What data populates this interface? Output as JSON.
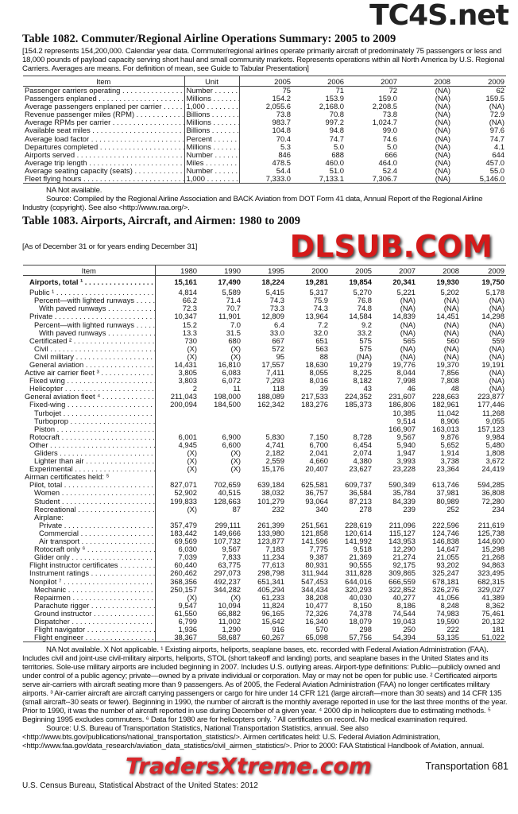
{
  "watermarks": {
    "top": "TC4S.net",
    "center": "DLSUB.COM",
    "bottom": "TradersXtreme.com"
  },
  "t1082": {
    "title": "Table 1082. Commuter/Regional Airline Operations Summary: 2005 to 2009",
    "intro": "[154.2 represents 154,200,000. Calendar year data. Commuter/regional airlines operate primarily aircraft of predominately 75 passengers or less and 18,000 pounds of payload capacity serving short haul and small community markets. Represents operations within all North America by U.S. Regional Carriers. Averages are means. For definition of mean, see Guide to Tabular Presentation]",
    "headers": [
      "Item",
      "Unit",
      "2005",
      "2006",
      "2007",
      "2008",
      "2009"
    ],
    "rows": [
      [
        "Passenger carriers operating",
        "Number",
        "75",
        "71",
        "72",
        "(NA)",
        "62"
      ],
      [
        "Passengers enplaned",
        "Millions",
        "154.2",
        "153.9",
        "159.0",
        "(NA)",
        "159.5"
      ],
      [
        "Average passengers enplaned per carrier",
        "1,000",
        "2,055.6",
        "2,168.0",
        "2,208.5",
        "(NA)",
        "(NA)"
      ],
      [
        "Revenue passenger miles (RPM)",
        "Billions",
        "73.8",
        "70.8",
        "73.8",
        "(NA)",
        "72.9"
      ],
      [
        "Average RPMs per carrier",
        "Millions",
        "983.7",
        "997.2",
        "1,024.7",
        "(NA)",
        "(NA)"
      ],
      [
        "Available seat miles",
        "Billions",
        "104.8",
        "94.8",
        "99.0",
        "(NA)",
        "97.6"
      ],
      [
        "Average load factor",
        "Percent",
        "70.4",
        "74.7",
        "74.6",
        "(NA)",
        "74.7"
      ],
      [
        "Departures completed",
        "Millions",
        "5.3",
        "5.0",
        "5.0",
        "(NA)",
        "4.1"
      ],
      [
        "Airports served",
        "Number",
        "846",
        "688",
        "666",
        "(NA)",
        "644"
      ],
      [
        "Average trip length",
        "Miles",
        "478.5",
        "460.0",
        "464.0",
        "(NA)",
        "457.0"
      ],
      [
        "Average seating capacity (seats)",
        "Number",
        "54.4",
        "51.0",
        "52.4",
        "(NA)",
        "55.0"
      ],
      [
        "Fleet flying hours",
        "1,000",
        "7,333.0",
        "7,133.1",
        "7,306.7",
        "(NA)",
        "5,146.0"
      ]
    ],
    "na_note": "NA Not available.",
    "source": "Source: Compiled by the Regional Airline Association and BACK Aviation from DOT Form 41 data, Annual Report of the Regional Airline Industry (copyright). See also <http://www.raa.org/>."
  },
  "t1083": {
    "title": "Table 1083. Airports, Aircraft, and Airmen: 1980 to 2009",
    "intro": "[As of December 31 or for years ending December 31]",
    "headers": [
      "Item",
      "1980",
      "1990",
      "1995",
      "2000",
      "2005",
      "2007",
      "2008",
      "2009"
    ],
    "rows": [
      {
        "l": "Airports, total ¹",
        "i": 1,
        "b": true,
        "v": [
          "15,161",
          "17,490",
          "18,224",
          "19,281",
          "19,854",
          "20,341",
          "19,930",
          "19,750"
        ]
      },
      {
        "l": "Public ¹",
        "i": 1,
        "v": [
          "4,814",
          "5,589",
          "5,415",
          "5,317",
          "5,270",
          "5,221",
          "5,202",
          "5,178"
        ]
      },
      {
        "l": "Percent—with lighted runways",
        "i": 2,
        "v": [
          "66.2",
          "71.4",
          "74.3",
          "75.9",
          "76.8",
          "(NA)",
          "(NA)",
          "(NA)"
        ]
      },
      {
        "l": "With paved runways",
        "i": 3,
        "v": [
          "72.3",
          "70.7",
          "73.3",
          "74.3",
          "74.8",
          "(NA)",
          "(NA)",
          "(NA)"
        ]
      },
      {
        "l": "Private",
        "i": 1,
        "v": [
          "10,347",
          "11,901",
          "12,809",
          "13,964",
          "14,584",
          "14,839",
          "14,451",
          "14,298"
        ]
      },
      {
        "l": "Percent—with lighted runways",
        "i": 2,
        "v": [
          "15.2",
          "7.0",
          "6.4",
          "7.2",
          "9.2",
          "(NA)",
          "(NA)",
          "(NA)"
        ]
      },
      {
        "l": "With paved runways",
        "i": 3,
        "v": [
          "13.3",
          "31.5",
          "33.0",
          "32.0",
          "33.2",
          "(NA)",
          "(NA)",
          "(NA)"
        ]
      },
      {
        "l": "Certificated ²",
        "i": 1,
        "v": [
          "730",
          "680",
          "667",
          "651",
          "575",
          "565",
          "560",
          "559"
        ]
      },
      {
        "l": "Civil",
        "i": 2,
        "v": [
          "(X)",
          "(X)",
          "572",
          "563",
          "575",
          "(NA)",
          "(NA)",
          "(NA)"
        ]
      },
      {
        "l": "Civil military",
        "i": 2,
        "v": [
          "(X)",
          "(X)",
          "95",
          "88",
          "(NA)",
          "(NA)",
          "(NA)",
          "(NA)"
        ]
      },
      {
        "l": "General aviation",
        "i": 1,
        "v": [
          "14,431",
          "16,810",
          "17,557",
          "18,630",
          "19,279",
          "19,776",
          "19,370",
          "19,191"
        ]
      },
      {
        "l": "Active air carrier fleet ³",
        "i": 0,
        "v": [
          "3,805",
          "6,083",
          "7,411",
          "8,055",
          "8,225",
          "8,044",
          "7,856",
          "(NA)"
        ]
      },
      {
        "l": "Fixed wing",
        "i": 1,
        "v": [
          "3,803",
          "6,072",
          "7,293",
          "8,016",
          "8,182",
          "7,998",
          "7,808",
          "(NA)"
        ]
      },
      {
        "l": "Helicopter",
        "i": 1,
        "v": [
          "2",
          "11",
          "118",
          "39",
          "43",
          "46",
          "48",
          "(NA)"
        ]
      },
      {
        "l": "General aviation fleet ⁴",
        "i": 0,
        "v": [
          "211,043",
          "198,000",
          "188,089",
          "217,533",
          "224,352",
          "231,607",
          "228,663",
          "223,877"
        ]
      },
      {
        "l": "Fixed-wing",
        "i": 1,
        "v": [
          "200,094",
          "184,500",
          "162,342",
          "183,276",
          "185,373",
          "186,806",
          "182,961",
          "177,446"
        ]
      },
      {
        "l": "Turbojet",
        "i": 2,
        "v": [
          "",
          "",
          "",
          "",
          "",
          "10,385",
          "11,042",
          "11,268"
        ]
      },
      {
        "l": "Turboprop",
        "i": 2,
        "v": [
          "",
          "",
          "",
          "",
          "",
          "9,514",
          "8,906",
          "9,055"
        ]
      },
      {
        "l": "Piston",
        "i": 2,
        "v": [
          "",
          "",
          "",
          "",
          "",
          "166,907",
          "163,013",
          "157,123"
        ]
      },
      {
        "l": "Rotocraft",
        "i": 1,
        "v": [
          "6,001",
          "6,900",
          "5,830",
          "7,150",
          "8,728",
          "9,567",
          "9,876",
          "9,984"
        ]
      },
      {
        "l": "Other",
        "i": 1,
        "v": [
          "4,945",
          "6,600",
          "4,741",
          "6,700",
          "6,454",
          "5,940",
          "5,652",
          "5,480"
        ]
      },
      {
        "l": "Gliders",
        "i": 2,
        "v": [
          "(X)",
          "(X)",
          "2,182",
          "2,041",
          "2,074",
          "1,947",
          "1,914",
          "1,808"
        ]
      },
      {
        "l": "Lighter than air",
        "i": 2,
        "v": [
          "(X)",
          "(X)",
          "2,559",
          "4,660",
          "4,380",
          "3,993",
          "3,738",
          "3,672"
        ]
      },
      {
        "l": "Experimental",
        "i": 1,
        "v": [
          "(X)",
          "(X)",
          "15,176",
          "20,407",
          "23,627",
          "23,228",
          "23,364",
          "24,419"
        ]
      },
      {
        "l": "Airman certificates held: ⁵",
        "i": 0,
        "h": true,
        "v": [
          "",
          "",
          "",
          "",
          "",
          "",
          "",
          ""
        ]
      },
      {
        "l": "Pilot, total",
        "i": 1,
        "v": [
          "827,071",
          "702,659",
          "639,184",
          "625,581",
          "609,737",
          "590,349",
          "613,746",
          "594,285"
        ]
      },
      {
        "l": "Women",
        "i": 2,
        "v": [
          "52,902",
          "40,515",
          "38,032",
          "36,757",
          "36,584",
          "35,784",
          "37,981",
          "36,808"
        ]
      },
      {
        "l": "Student",
        "i": 2,
        "v": [
          "199,833",
          "128,663",
          "101,279",
          "93,064",
          "87,213",
          "84,339",
          "80,989",
          "72,280"
        ]
      },
      {
        "l": "Recreational",
        "i": 2,
        "v": [
          "(X)",
          "87",
          "232",
          "340",
          "278",
          "239",
          "252",
          "234"
        ]
      },
      {
        "l": "Airplane:",
        "i": 2,
        "h": true,
        "v": [
          "",
          "",
          "",
          "",
          "",
          "",
          "",
          ""
        ]
      },
      {
        "l": "Private",
        "i": 3,
        "v": [
          "357,479",
          "299,111",
          "261,399",
          "251,561",
          "228,619",
          "211,096",
          "222,596",
          "211,619"
        ]
      },
      {
        "l": "Commercial",
        "i": 3,
        "v": [
          "183,442",
          "149,666",
          "133,980",
          "121,858",
          "120,614",
          "115,127",
          "124,746",
          "125,738"
        ]
      },
      {
        "l": "Air transport",
        "i": 3,
        "v": [
          "69,569",
          "107,732",
          "123,877",
          "141,596",
          "141,992",
          "143,953",
          "146,838",
          "144,600"
        ]
      },
      {
        "l": "Rotocraft only ⁶",
        "i": 2,
        "v": [
          "6,030",
          "9,567",
          "7,183",
          "7,775",
          "9,518",
          "12,290",
          "14,647",
          "15,298"
        ]
      },
      {
        "l": "Glider only",
        "i": 2,
        "v": [
          "7,039",
          "7,833",
          "11,234",
          "9,387",
          "21,369",
          "21,274",
          "21,055",
          "21,268"
        ]
      },
      {
        "l": "Flight instructor certificates",
        "i": 1,
        "v": [
          "60,440",
          "63,775",
          "77,613",
          "80,931",
          "90,555",
          "92,175",
          "93,202",
          "94,863"
        ]
      },
      {
        "l": "Instrument ratings",
        "i": 1,
        "v": [
          "260,462",
          "297,073",
          "298,798",
          "311,944",
          "311,828",
          "309,865",
          "325,247",
          "323,495"
        ]
      },
      {
        "l": "Nonpilot ⁷",
        "i": 1,
        "v": [
          "368,356",
          "492,237",
          "651,341",
          "547,453",
          "644,016",
          "666,559",
          "678,181",
          "682,315"
        ]
      },
      {
        "l": "Mechanic",
        "i": 2,
        "v": [
          "250,157",
          "344,282",
          "405,294",
          "344,434",
          "320,293",
          "322,852",
          "326,276",
          "329,027"
        ]
      },
      {
        "l": "Repairmen",
        "i": 2,
        "v": [
          "(X)",
          "(X)",
          "61,233",
          "38,208",
          "40,030",
          "40,277",
          "41,056",
          "41,389"
        ]
      },
      {
        "l": "Parachute rigger",
        "i": 2,
        "v": [
          "9,547",
          "10,094",
          "11,824",
          "10,477",
          "8,150",
          "8,186",
          "8,248",
          "8,362"
        ]
      },
      {
        "l": "Ground instructor",
        "i": 2,
        "v": [
          "61,550",
          "66,882",
          "96,165",
          "72,326",
          "74,378",
          "74,544",
          "74,983",
          "75,461"
        ]
      },
      {
        "l": "Dispatcher",
        "i": 2,
        "v": [
          "6,799",
          "11,002",
          "15,642",
          "16,340",
          "18,079",
          "19,043",
          "19,590",
          "20,132"
        ]
      },
      {
        "l": "Flight navigator",
        "i": 2,
        "v": [
          "1,936",
          "1,290",
          "916",
          "570",
          "298",
          "250",
          "222",
          "181"
        ]
      },
      {
        "l": "Flight engineer",
        "i": 2,
        "v": [
          "38,367",
          "58,687",
          "60,267",
          "65,098",
          "57,756",
          "54,394",
          "53,135",
          "51,022"
        ]
      }
    ],
    "notes": "NA Not available. X Not applicable. ¹ Existing airports, heliports, seaplane bases, etc. recorded with Federal Aviation Administration (FAA). Includes civil and joint-use civil-military airports, heliports, STOL (short takeoff and landing) ports, and seaplane bases in the United States and its territories. Sole-use military airports are included beginning in 2007. Includes U.S. outlying areas. Airport-type definitions: Public—publicly owned and under control of a public agency; private—owned by a private individual or corporation. May or may not be open for public use. ² Certificated airports serve air-carriers with aircraft seating more than 9 passengers. As of 2005, the Federal Aviation Administration (FAA) no longer certificates military airports. ³ Air-carrier aircraft are aircraft carrying passengers or cargo for hire under 14 CFR 121 (large aircraft—more than 30 seats) and 14 CFR 135 (small aircraft--30 seats or fewer). Beginning in 1990, the number of aircraft is the monthly average reported in use for the last three months of the year. Prior to 1990, it was the number of aircraft reported in use during December of a given year. ⁴ 2000 dip in helicopters due to estimating methods. ⁵ Beginning 1995 excludes commuters. ⁶ Data for 1980 are for helicopters only. ⁷ All certificates on record. No medical examination required.",
    "source": "Source: U.S. Bureau of Transportation Statistics, National Transportation Statistics, annual. See also <http://www.bts.gov/publications/national_transportation_statistics/>. Airmen certificates held: U.S. Federal Aviation Administration, <http://www.faa.gov/data_research/aviation_data_statistics/civil_airmen_statistics/>. Prior to 2000: FAA Statistical Handbook of Aviation, annual."
  },
  "footer": {
    "left": "U.S. Census Bureau, Statistical Abstract of the United States: 2012",
    "right": "Transportation  681"
  }
}
